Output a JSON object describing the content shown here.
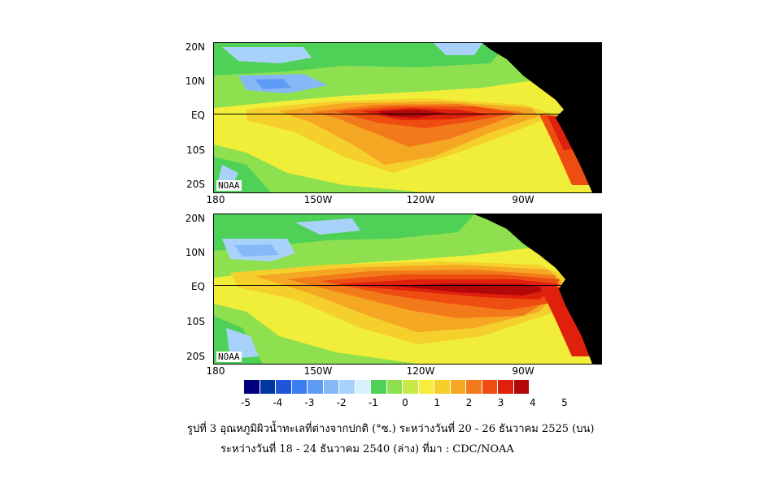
{
  "maps": [
    {
      "label": "NOAA",
      "warm_extent": 0.75
    },
    {
      "label": "NOAA",
      "warm_extent": 1.0
    }
  ],
  "lat_labels": [
    "20N",
    "10N",
    "EQ",
    "10S",
    "20S"
  ],
  "lon_labels": [
    "180",
    "150W",
    "120W",
    "90W"
  ],
  "colorbar": {
    "colors": [
      "#00007f",
      "#0036a0",
      "#1f55d8",
      "#3b7cf0",
      "#5f9cf5",
      "#86b8f8",
      "#a9d2fb",
      "#d8f0fc",
      "#4fd157",
      "#8ee04f",
      "#c7ea48",
      "#f6ee3a",
      "#f5cf2c",
      "#f5a623",
      "#f37a1a",
      "#ee4d12",
      "#de200c",
      "#b2080a"
    ],
    "labels": [
      "-5",
      "-4",
      "-3",
      "-2",
      "-1",
      "0",
      "1",
      "2",
      "3",
      "4",
      "5"
    ]
  },
  "caption": {
    "line1": "รูปที่ 3  อุณหภูมิผิวน้ำทะเลที่ต่างจากปกติ (°ซ.) ระหว่างวันที่ 20 - 26 ธันวาคม 2525 (บน)",
    "line2": "ระหว่างวันที่ 18 - 24 ธันวาคม 2540 (ล่าง)   ที่มา  : CDC/NOAA"
  }
}
